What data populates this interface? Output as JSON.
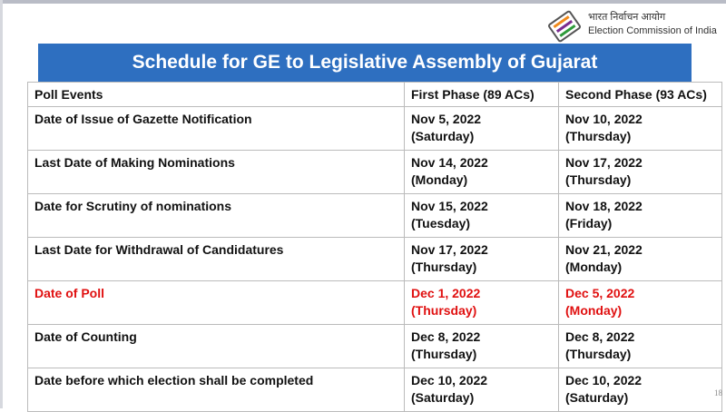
{
  "header": {
    "org_hindi": "भारत निर्वाचन आयोग",
    "org_english": "Election Commission of India",
    "title": "Schedule for GE to Legislative Assembly of Gujarat"
  },
  "table": {
    "columns": [
      "Poll Events",
      "First Phase (89 ACs)",
      "Second Phase (93 ACs)"
    ],
    "rows": [
      {
        "cells": [
          "Date of Issue of Gazette Notification",
          [
            "Nov 5, 2022",
            "(Saturday)"
          ],
          [
            "Nov 10, 2022",
            "(Thursday)"
          ]
        ]
      },
      {
        "cells": [
          "Last Date of Making Nominations",
          [
            "Nov 14, 2022",
            "(Monday)"
          ],
          [
            "Nov 17, 2022",
            "(Thursday)"
          ]
        ]
      },
      {
        "cells": [
          "Date for Scrutiny of nominations",
          [
            "Nov 15, 2022",
            "(Tuesday)"
          ],
          [
            "Nov 18, 2022",
            "(Friday)"
          ]
        ]
      },
      {
        "cells": [
          "Last Date for Withdrawal of Candidatures",
          [
            "Nov 17, 2022",
            "(Thursday)"
          ],
          [
            "Nov 21, 2022",
            "(Monday)"
          ]
        ]
      },
      {
        "cells": [
          "Date of Poll",
          [
            "Dec 1, 2022",
            "(Thursday)"
          ],
          [
            "Dec 5, 2022",
            "(Monday)"
          ]
        ],
        "color": "#e01010"
      },
      {
        "cells": [
          "Date of Counting",
          [
            "Dec 8, 2022",
            "(Thursday)"
          ],
          [
            "Dec 8, 2022",
            "(Thursday)"
          ]
        ]
      },
      {
        "cells": [
          "Date before which election shall be completed",
          [
            "Dec 10, 2022",
            "(Saturday)"
          ],
          [
            "Dec 10, 2022",
            "(Saturday)"
          ]
        ]
      }
    ]
  },
  "footer": {
    "page_number": "18"
  }
}
